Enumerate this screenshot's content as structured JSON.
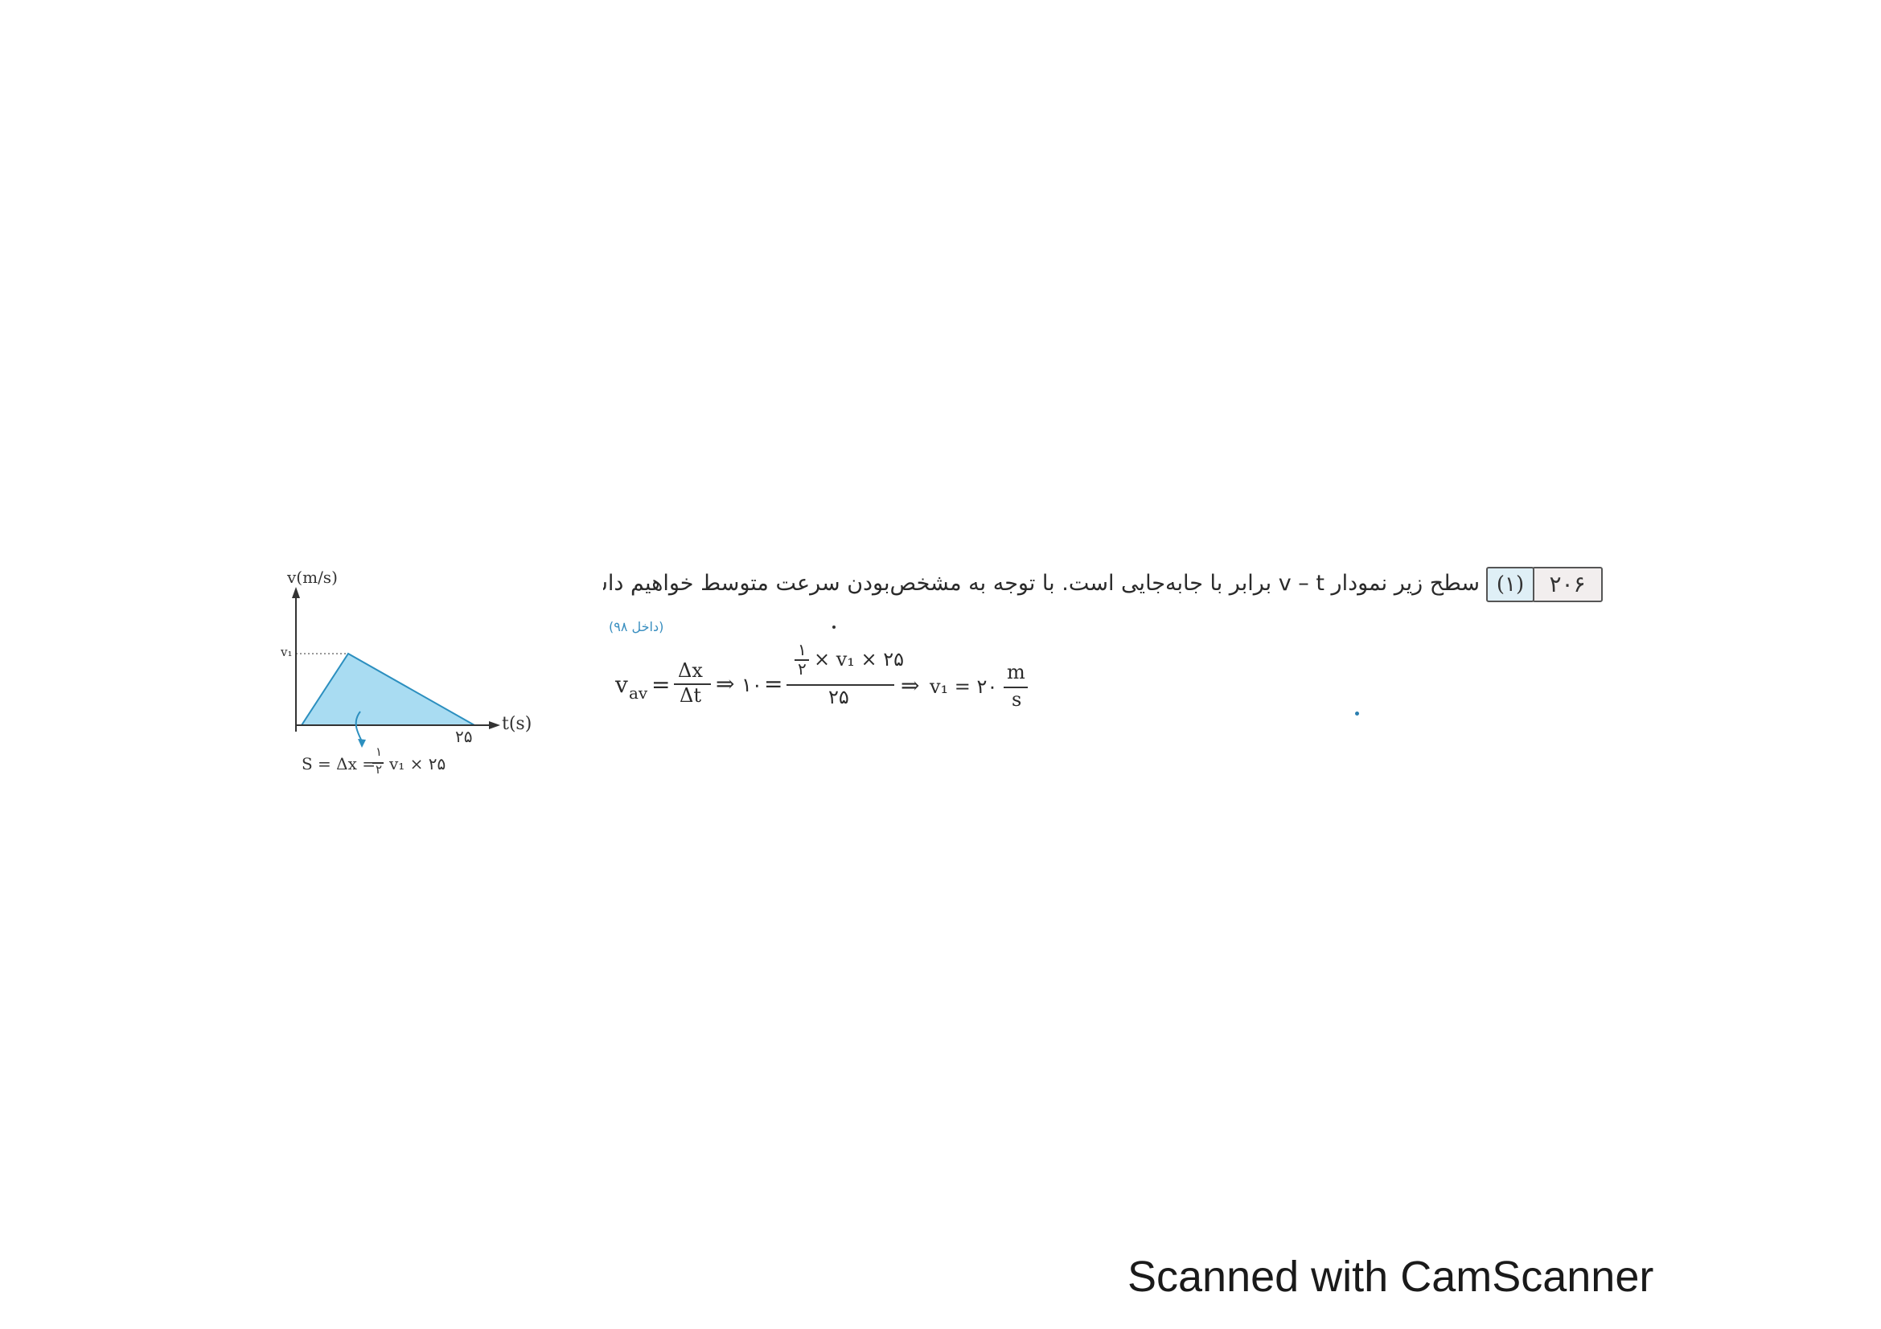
{
  "problem": {
    "number": "۲۰۶",
    "answer": "(۱)",
    "text": "سطح زیر نمودار v – t برابر با جابه‌جایی است. با توجه به مشخص‌بودن سرعت متوسط خواهیم داشت:",
    "source": "(داخل ۹۸)"
  },
  "formula": {
    "v": "v",
    "v_sub": "av",
    "eq1": "=",
    "frac1_num": "Δx",
    "frac1_den": "Δt",
    "arrow1": "⇒",
    "val10": "۱۰",
    "eq2": "=",
    "half_num": "۱",
    "half_den": "۲",
    "frac2_num_rest": "× v₁ × ۲۵",
    "frac2_den": "۲۵",
    "arrow2": "⇒",
    "result_lhs": "v₁ = ۲۰",
    "unit_num": "m",
    "unit_den": "s"
  },
  "graph": {
    "y_axis_label": "v(m/s)",
    "x_axis_label": "t(s)",
    "peak_label": "v₁",
    "x_end_tick": "۲۵",
    "area_note_lhs": "S = Δx =",
    "area_note_half_num": "۱",
    "area_note_half_den": "۲",
    "area_note_rhs": "v₁ × ۲۵",
    "fill_color": "#a9dcf2"
  },
  "watermark": "Scanned with CamScanner"
}
